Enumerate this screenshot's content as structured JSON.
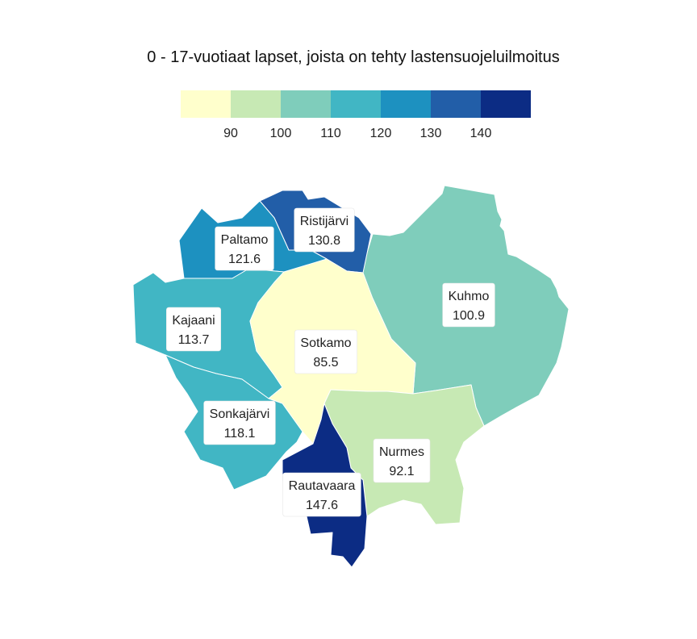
{
  "title": "0 - 17-vuotiaat lapset, joista on tehty lastensuojeluilmoitus",
  "legend": {
    "colors": [
      "#ffffcc",
      "#c7e9b4",
      "#7fcdbb",
      "#41b6c4",
      "#1d91c0",
      "#225ea8",
      "#0c2c84"
    ],
    "breaks": [
      "90",
      "100",
      "110",
      "120",
      "130",
      "140"
    ]
  },
  "chart_data": {
    "type": "choropleth",
    "title": "0 - 17-vuotiaat lapset, joista on tehty lastensuojeluilmoitus",
    "color_scale": {
      "breaks": [
        90,
        100,
        110,
        120,
        130,
        140
      ],
      "colors": [
        "#ffffcc",
        "#c7e9b4",
        "#7fcdbb",
        "#41b6c4",
        "#1d91c0",
        "#225ea8",
        "#0c2c84"
      ]
    },
    "regions": [
      {
        "name": "Kuhmo",
        "value": 100.9
      },
      {
        "name": "Ristijärvi",
        "value": 130.8
      },
      {
        "name": "Paltamo",
        "value": 121.6
      },
      {
        "name": "Kajaani",
        "value": 113.7
      },
      {
        "name": "Sotkamo",
        "value": 85.5
      },
      {
        "name": "Sonkajärvi",
        "value": 118.1
      },
      {
        "name": "Nurmes",
        "value": 92.1
      },
      {
        "name": "Rautavaara",
        "value": 147.6
      }
    ]
  }
}
